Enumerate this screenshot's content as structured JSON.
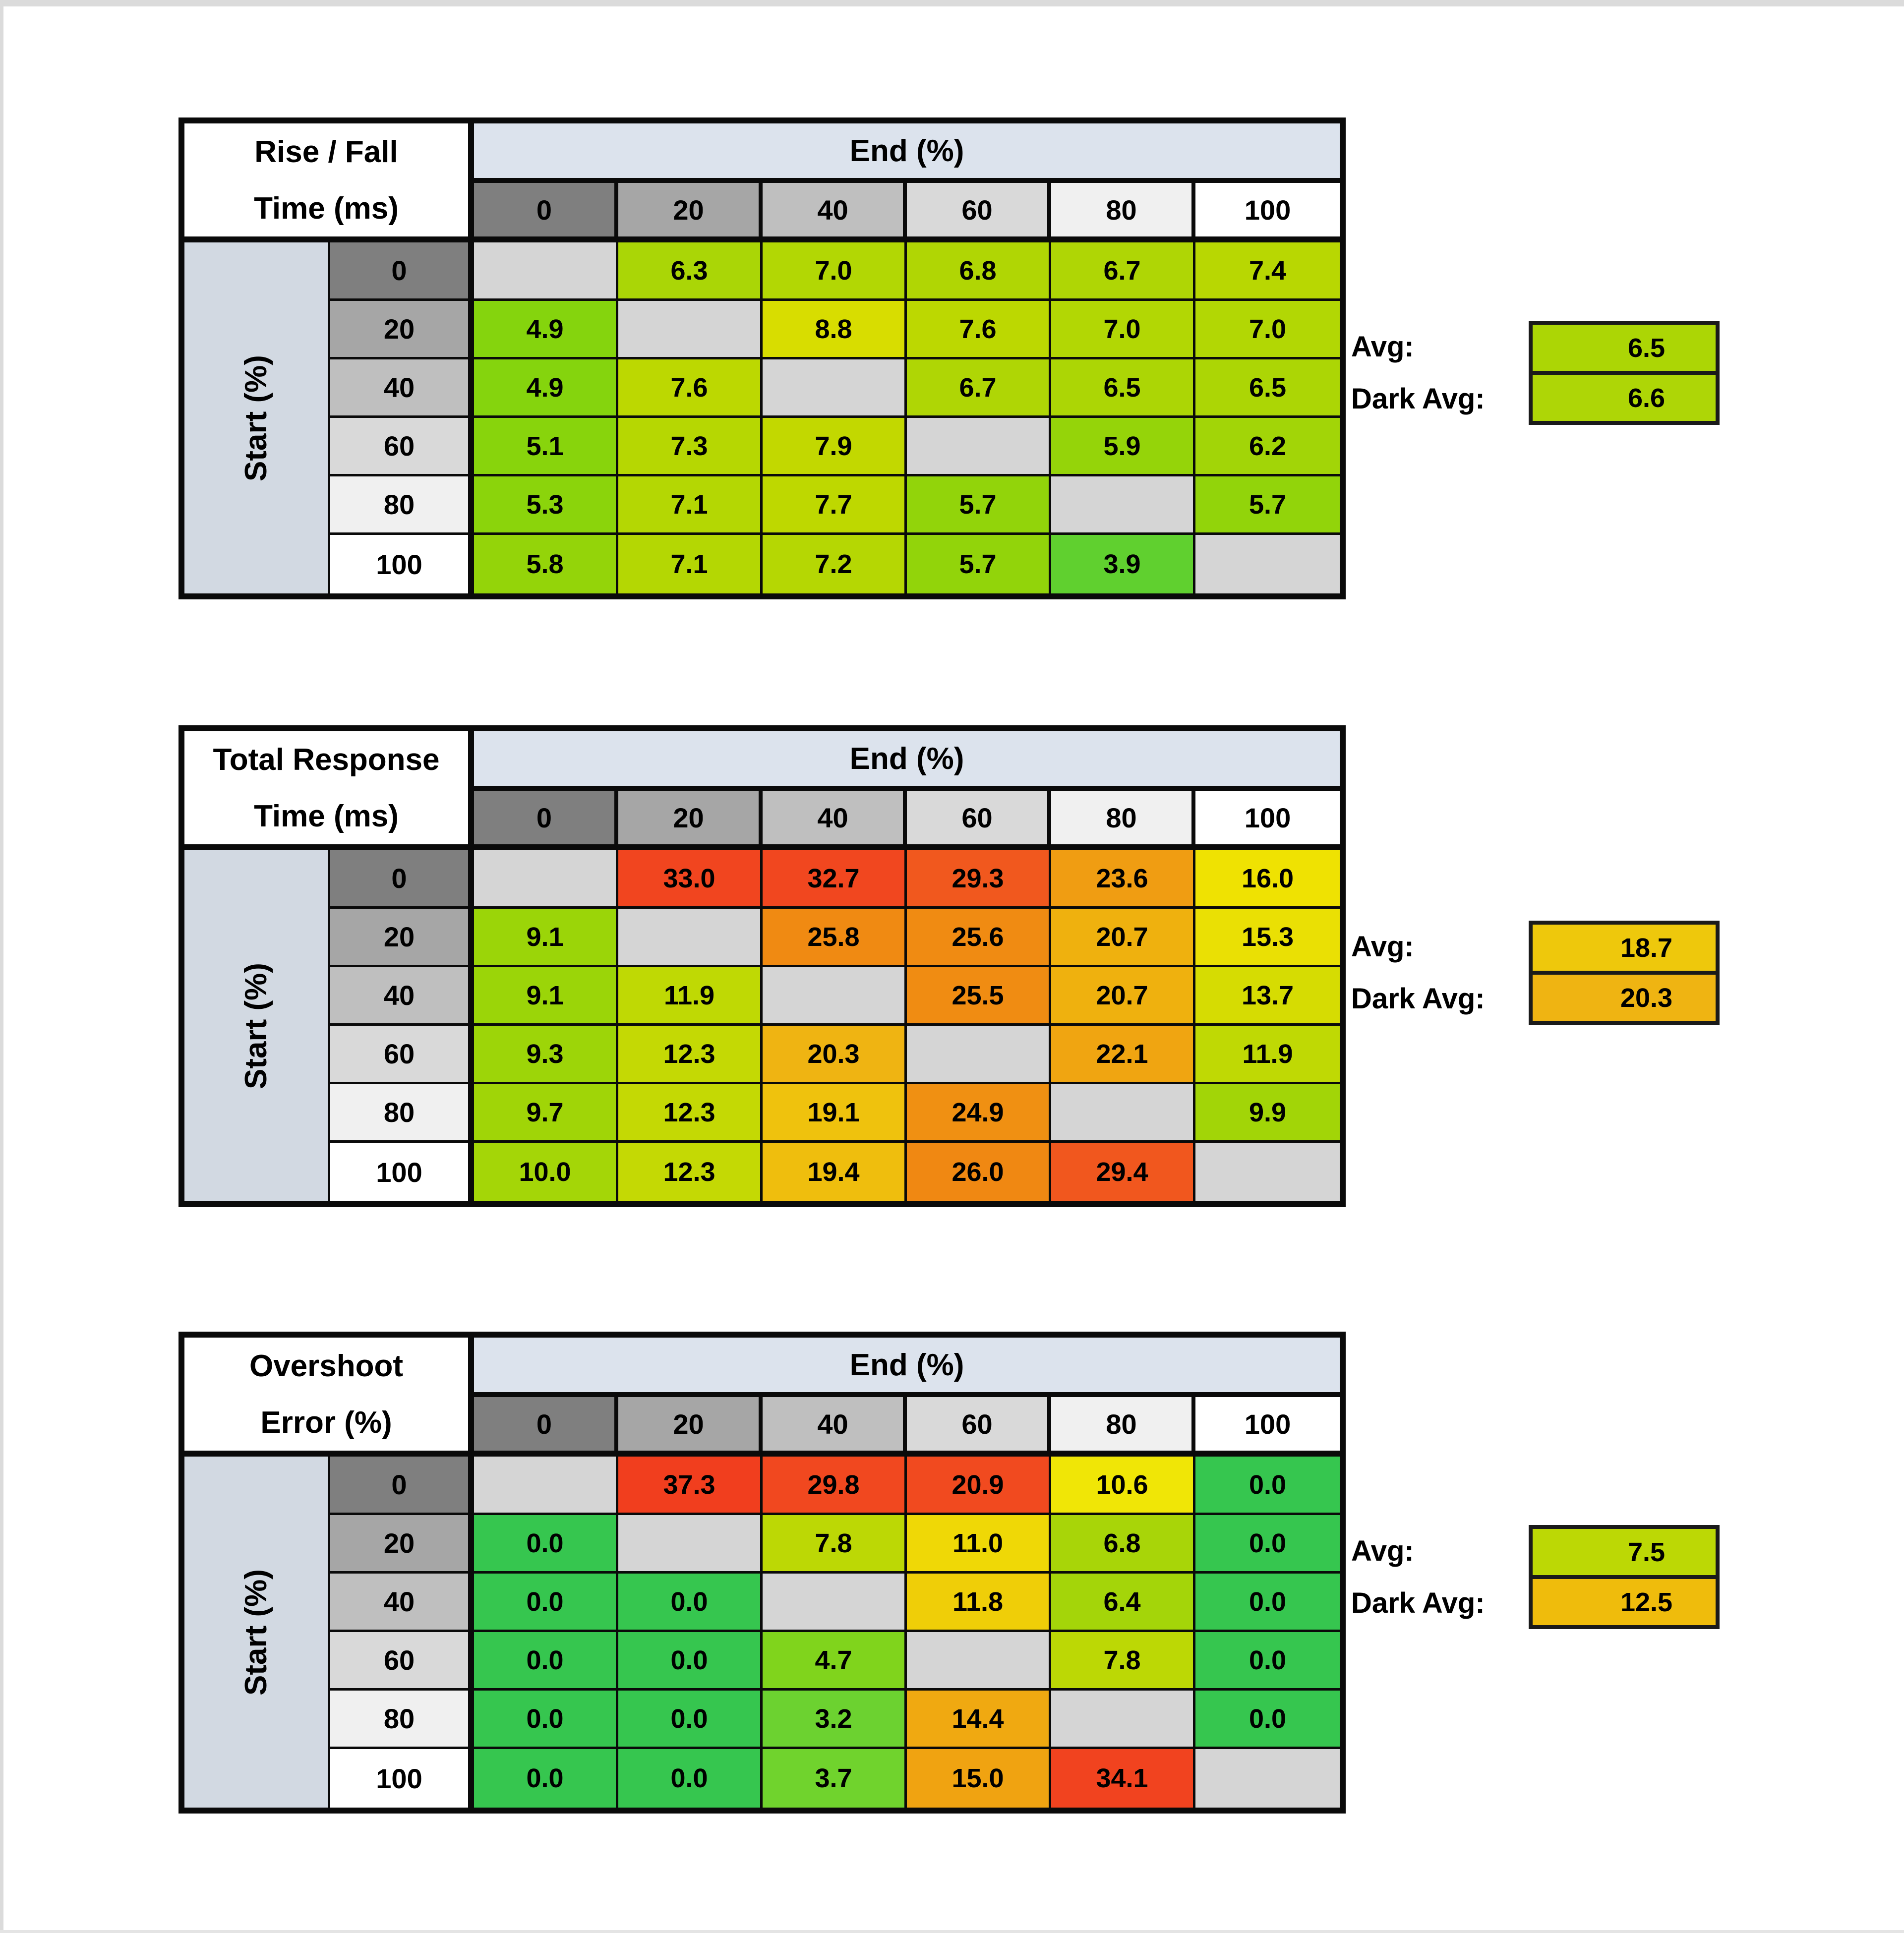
{
  "page": {
    "background": "#FFFFFF",
    "frame_color": "#DBDBDB"
  },
  "shared": {
    "end_axis_label": "End (%)",
    "start_axis_label": "Start (%)",
    "avg_label": "Avg:",
    "dark_avg_label": "Dark Avg:",
    "end_header_bg": "#DCE3ED",
    "start_header_bg": "#D2D9E2",
    "diagonal_cell_bg": "#D5D5D5",
    "header_grays": [
      "#7F7F7F",
      "#A6A6A6",
      "#BFBFBF",
      "#D9D9D9",
      "#F0F0F0",
      "#FFFFFF"
    ],
    "grid_line_color": "#0A0A0A"
  },
  "chart_data": [
    {
      "type": "heatmap",
      "title_lines": [
        "Rise / Fall",
        "Time (ms)"
      ],
      "x_label": "End (%)",
      "y_label": "Start (%)",
      "x_ticks": [
        0,
        20,
        40,
        60,
        80,
        100
      ],
      "y_ticks": [
        0,
        20,
        40,
        60,
        80,
        100
      ],
      "values": [
        [
          null,
          6.3,
          7.0,
          6.8,
          6.7,
          7.4
        ],
        [
          4.9,
          null,
          8.8,
          7.6,
          7.0,
          7.0
        ],
        [
          4.9,
          7.6,
          null,
          6.7,
          6.5,
          6.5
        ],
        [
          5.1,
          7.3,
          7.9,
          null,
          5.9,
          6.2
        ],
        [
          5.3,
          7.1,
          7.7,
          5.7,
          null,
          5.7
        ],
        [
          5.8,
          7.1,
          7.2,
          5.7,
          3.9,
          null
        ]
      ],
      "cell_colors": [
        [
          null,
          "#AAD606",
          "#B2D704",
          "#B0D604",
          "#AFD605",
          "#B8D702"
        ],
        [
          "#85D40D",
          null,
          "#D8DD00",
          "#BCD801",
          "#B2D704",
          "#B2D704"
        ],
        [
          "#85D40D",
          "#BCD801",
          null,
          "#AFD605",
          "#ACD605",
          "#ACD605"
        ],
        [
          "#88D40C",
          "#B6D702",
          "#C2D800",
          null,
          "#95D409",
          "#A2D507"
        ],
        [
          "#8BD40B",
          "#B4D703",
          "#BED800",
          "#92D40A",
          null,
          "#92D40A"
        ],
        [
          "#94D409",
          "#B4D703",
          "#B5D703",
          "#92D40A",
          "#60D02F",
          null
        ]
      ],
      "avg": {
        "label": "Avg:",
        "value": 6.5,
        "color": "#ACD605"
      },
      "dark_avg": {
        "label": "Dark Avg:",
        "value": 6.6,
        "color": "#AED606"
      }
    },
    {
      "type": "heatmap",
      "title_lines": [
        "Total Response",
        "Time (ms)"
      ],
      "x_label": "End (%)",
      "y_label": "Start (%)",
      "x_ticks": [
        0,
        20,
        40,
        60,
        80,
        100
      ],
      "y_ticks": [
        0,
        20,
        40,
        60,
        80,
        100
      ],
      "values": [
        [
          null,
          33.0,
          32.7,
          29.3,
          23.6,
          16.0
        ],
        [
          9.1,
          null,
          25.8,
          25.6,
          20.7,
          15.3
        ],
        [
          9.1,
          11.9,
          null,
          25.5,
          20.7,
          13.7
        ],
        [
          9.3,
          12.3,
          20.3,
          null,
          22.1,
          11.9
        ],
        [
          9.7,
          12.3,
          19.1,
          24.9,
          null,
          9.9
        ],
        [
          10.0,
          12.3,
          19.4,
          26.0,
          29.4,
          null
        ]
      ],
      "cell_colors": [
        [
          null,
          "#F1451F",
          "#F1471F",
          "#F1581E",
          "#F09D12",
          "#EFE202"
        ],
        [
          "#9BD508",
          null,
          "#F08A12",
          "#F08B12",
          "#EFB10E",
          "#EAE004"
        ],
        [
          "#9BD508",
          "#BFD904",
          null,
          "#F08C12",
          "#EFB10E",
          "#D6DC02"
        ],
        [
          "#9DD508",
          "#C4D904",
          "#EFB412",
          null,
          "#F0A511",
          "#BFD904"
        ],
        [
          "#A0D507",
          "#C4D904",
          "#EFC20D",
          "#F09012",
          null,
          "#A2D507"
        ],
        [
          "#A4D607",
          "#C4D904",
          "#EFBE0D",
          "#F08812",
          "#F1571E",
          null
        ]
      ],
      "avg": {
        "label": "Avg:",
        "value": 18.7,
        "color": "#EEC80C"
      },
      "dark_avg": {
        "label": "Dark Avg:",
        "value": 20.3,
        "color": "#EFB412"
      }
    },
    {
      "type": "heatmap",
      "title_lines": [
        "Overshoot",
        "Error (%)"
      ],
      "x_label": "End (%)",
      "y_label": "Start (%)",
      "x_ticks": [
        0,
        20,
        40,
        60,
        80,
        100
      ],
      "y_ticks": [
        0,
        20,
        40,
        60,
        80,
        100
      ],
      "values": [
        [
          null,
          37.3,
          29.8,
          20.9,
          10.6,
          0.0
        ],
        [
          0.0,
          null,
          7.8,
          11.0,
          6.8,
          0.0
        ],
        [
          0.0,
          0.0,
          null,
          11.8,
          6.4,
          0.0
        ],
        [
          0.0,
          0.0,
          4.7,
          null,
          7.8,
          0.0
        ],
        [
          0.0,
          0.0,
          3.2,
          14.4,
          null,
          0.0
        ],
        [
          0.0,
          0.0,
          3.7,
          15.0,
          34.1,
          null
        ]
      ],
      "cell_colors": [
        [
          null,
          "#F13E1E",
          "#F1481F",
          "#F14A1F",
          "#F0E606",
          "#36C64F"
        ],
        [
          "#36C64F",
          null,
          "#BCD805",
          "#EFD806",
          "#A8D508",
          "#36C64F"
        ],
        [
          "#36C64F",
          "#36C64F",
          null,
          "#EFCE08",
          "#A4D509",
          "#36C64F"
        ],
        [
          "#36C64F",
          "#36C64F",
          "#80D41C",
          null,
          "#BCD805",
          "#36C64F"
        ],
        [
          "#36C64F",
          "#36C64F",
          "#6CD230",
          "#F0A911",
          null,
          "#36C64F"
        ],
        [
          "#36C64F",
          "#36C64F",
          "#70D32D",
          "#F0A311",
          "#F1431F",
          null
        ]
      ],
      "avg": {
        "label": "Avg:",
        "value": 7.5,
        "color": "#BCD805"
      },
      "dark_avg": {
        "label": "Dark Avg:",
        "value": 12.5,
        "color": "#EFBC0C"
      }
    }
  ]
}
